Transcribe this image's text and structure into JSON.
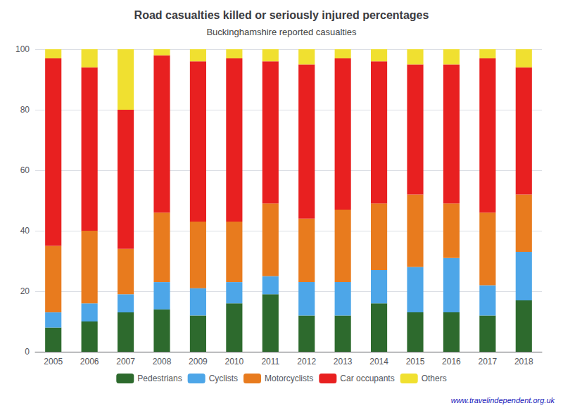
{
  "chart_data": {
    "type": "bar",
    "stacked": true,
    "title": "Road casualties killed or seriously injured percentages",
    "subtitle": "Buckinghamshire reported casualties",
    "categories": [
      "2005",
      "2006",
      "2007",
      "2008",
      "2009",
      "2010",
      "2011",
      "2012",
      "2013",
      "2014",
      "2015",
      "2016",
      "2017",
      "2018"
    ],
    "series": [
      {
        "name": "Pedestrians",
        "color": "#2d6a2d",
        "values": [
          8,
          10,
          13,
          14,
          12,
          16,
          19,
          12,
          12,
          16,
          13,
          13,
          12,
          17
        ]
      },
      {
        "name": "Cyclists",
        "color": "#4da6e8",
        "values": [
          5,
          6,
          6,
          9,
          9,
          7,
          6,
          11,
          11,
          11,
          15,
          18,
          10,
          16
        ]
      },
      {
        "name": "Motorcyclists",
        "color": "#e87b1e",
        "values": [
          22,
          24,
          15,
          23,
          22,
          20,
          24,
          21,
          24,
          22,
          24,
          18,
          24,
          19
        ]
      },
      {
        "name": "Car occupants",
        "color": "#e82020",
        "values": [
          62,
          54,
          46,
          52,
          53,
          54,
          47,
          51,
          50,
          47,
          43,
          46,
          51,
          42
        ]
      },
      {
        "name": "Others",
        "color": "#f0e030",
        "values": [
          3,
          6,
          20,
          2,
          4,
          3,
          4,
          5,
          3,
          4,
          5,
          5,
          3,
          6
        ]
      }
    ],
    "ylim": [
      0,
      100
    ],
    "yticks": [
      0,
      20,
      40,
      60,
      80,
      100
    ],
    "grid": true,
    "legend": "bottom",
    "annotation": "www.travelindependent.org.uk"
  }
}
